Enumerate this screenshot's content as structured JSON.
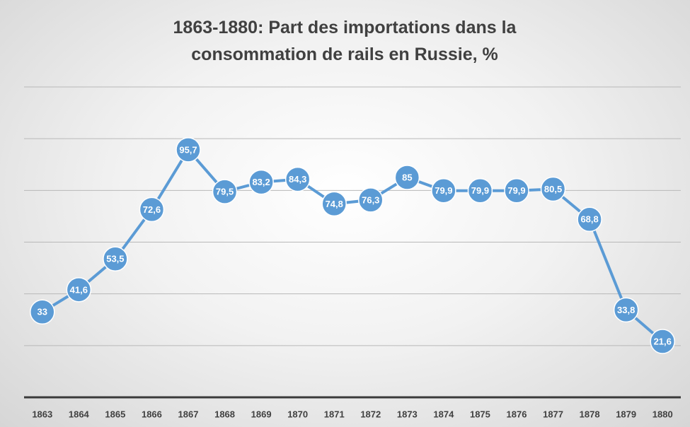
{
  "chart_data": {
    "type": "line",
    "title": "1863-1880: Part des importations dans la consommation de rails en Russie, %",
    "categories": [
      "1863",
      "1864",
      "1865",
      "1866",
      "1867",
      "1868",
      "1869",
      "1870",
      "1871",
      "1872",
      "1873",
      "1874",
      "1875",
      "1876",
      "1877",
      "1878",
      "1879",
      "1880"
    ],
    "series": [
      {
        "color": "#5b9bd5",
        "values": [
          33,
          41.6,
          53.5,
          72.6,
          95.7,
          79.5,
          83.2,
          84.3,
          74.8,
          76.3,
          85,
          79.9,
          79.9,
          79.9,
          80.5,
          68.8,
          33.8,
          21.6
        ],
        "value_labels": [
          "33",
          "41,6",
          "53,5",
          "72,6",
          "95,7",
          "79,5",
          "83,2",
          "84,3",
          "74,8",
          "76,3",
          "85",
          "79,9",
          "79,9",
          "79,9",
          "80,5",
          "68,8",
          "33,8",
          "21,6"
        ]
      }
    ],
    "ylim": [
      0,
      120
    ],
    "yticks": [
      0,
      20,
      40,
      60,
      80,
      100,
      120
    ],
    "grid": true
  }
}
